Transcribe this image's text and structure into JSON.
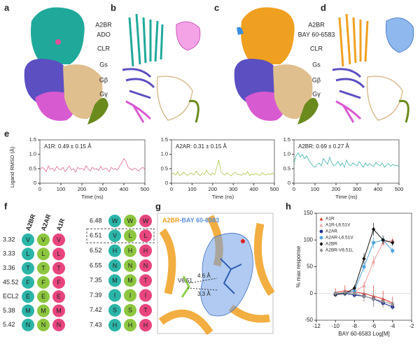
{
  "panel_labels": [
    "a",
    "b",
    "c",
    "d",
    "e",
    "f",
    "g",
    "h"
  ],
  "panel_a": {
    "labels": [
      {
        "text": "A2BR",
        "color": "#1fa99a"
      },
      {
        "text": "ADO",
        "color": "#e0509a"
      },
      {
        "text": "CLR",
        "color": "#3bb0c9"
      },
      {
        "text": "Gs",
        "color": "#5b4fc2"
      },
      {
        "text": "Gβ",
        "color": "#c9a77a"
      },
      {
        "text": "Gγ",
        "color": "#6b8a1e"
      }
    ]
  },
  "panel_c": {
    "labels": [
      {
        "text": "A2BR",
        "color": "#f0a020"
      },
      {
        "text": "BAY 60-6583",
        "color": "#5b8fd6"
      },
      {
        "text": "CLR",
        "color": "#3bb0c9"
      },
      {
        "text": "Gs",
        "color": "#5b4fc2"
      },
      {
        "text": "Gβ",
        "color": "#c9a77a"
      },
      {
        "text": "Gγ",
        "color": "#6b8a1e"
      }
    ]
  },
  "panel_f": {
    "headers": [
      {
        "text": "A2BR",
        "color": "#2bb5a8"
      },
      {
        "text": "A2AR",
        "color": "#8dc63f"
      },
      {
        "text": "A1R",
        "color": "#e8457f"
      }
    ],
    "left_rows": [
      {
        "pos": "3.32",
        "res": [
          "V",
          "V",
          "V"
        ]
      },
      {
        "pos": "3.33",
        "res": [
          "L",
          "L",
          "L"
        ]
      },
      {
        "pos": "3.36",
        "res": [
          "T",
          "T",
          "T"
        ]
      },
      {
        "pos": "45.52",
        "res": [
          "F",
          "F",
          "F"
        ]
      },
      {
        "pos": "ECL2",
        "res": [
          "E",
          "E",
          "E"
        ]
      },
      {
        "pos": "5.38",
        "res": [
          "M",
          "M",
          "M"
        ]
      },
      {
        "pos": "5.42",
        "res": [
          "N",
          "N",
          "N"
        ]
      }
    ],
    "right_rows": [
      {
        "pos": "6.48",
        "res": [
          "W",
          "W",
          "W"
        ]
      },
      {
        "pos": "6.51",
        "res": [
          "V",
          "L",
          "L"
        ],
        "highlight": true
      },
      {
        "pos": "6.52",
        "res": [
          "H",
          "H",
          "H"
        ]
      },
      {
        "pos": "6.55",
        "res": [
          "N",
          "N",
          "N"
        ]
      },
      {
        "pos": "7.35",
        "res": [
          "M",
          "M",
          "T"
        ]
      },
      {
        "pos": "7.39",
        "res": [
          "I",
          "I",
          "I"
        ]
      },
      {
        "pos": "7.42",
        "res": [
          "S",
          "S",
          "T"
        ]
      },
      {
        "pos": "7.43",
        "res": [
          "H",
          "H",
          "H"
        ]
      }
    ]
  },
  "panel_g": {
    "receptor": "A2BR",
    "ligand": "-BAY 60-6583",
    "residue": "V6.51",
    "distances": [
      "4.6 Å",
      "3.3 Å"
    ]
  },
  "chart_data": [
    {
      "type": "line",
      "annotation": "A1R: 0.49 ± 0.15 Å",
      "y_label": "Ligand RMSD (Å)",
      "x_label": "Time (ns)",
      "x": [
        0,
        10,
        20,
        30,
        40,
        50,
        60,
        70,
        80,
        90,
        100,
        110,
        120,
        130,
        140,
        150,
        160,
        170,
        180,
        190,
        200,
        210,
        220,
        230,
        240,
        250,
        260,
        270,
        280,
        290,
        300,
        310,
        320,
        330,
        340,
        350,
        360,
        370,
        380,
        390,
        400,
        410,
        420,
        430,
        440,
        450,
        460,
        470,
        480,
        490,
        500
      ],
      "series": [
        {
          "color": "#d9538a",
          "values": [
            0.45,
            0.55,
            0.5,
            0.4,
            0.6,
            0.48,
            0.52,
            0.42,
            0.58,
            0.5,
            0.46,
            0.55,
            0.4,
            0.5,
            0.6,
            0.45,
            0.5,
            0.38,
            0.55,
            0.48,
            0.52,
            0.45,
            0.6,
            0.5,
            0.42,
            0.55,
            0.48,
            0.5,
            0.44,
            0.58,
            0.46,
            0.52,
            0.5,
            0.4,
            0.55,
            0.48,
            0.5,
            0.45,
            0.6,
            0.7,
            0.85,
            0.75,
            0.55,
            0.5,
            0.45,
            0.52,
            0.48,
            0.42,
            0.5,
            0.55,
            0.47
          ]
        }
      ],
      "xlim": [
        0,
        500
      ],
      "ylim": [
        0,
        1.5
      ],
      "xticks": [
        0,
        100,
        200,
        300,
        400,
        500
      ],
      "yticks": [
        0,
        0.5,
        {
          "value": 1,
          "label": "1.0"
        },
        1.5
      ]
    },
    {
      "type": "line",
      "annotation": "A2AR: 0.31 ± 0.15 Å",
      "x_label": "Time (ns)",
      "x": [
        0,
        10,
        20,
        30,
        40,
        50,
        60,
        70,
        80,
        90,
        100,
        110,
        120,
        130,
        140,
        150,
        160,
        170,
        180,
        190,
        200,
        210,
        220,
        230,
        240,
        250,
        260,
        270,
        280,
        290,
        300,
        310,
        320,
        330,
        340,
        350,
        360,
        370,
        380,
        390,
        400,
        410,
        420,
        430,
        440,
        450,
        460,
        470,
        480,
        490,
        500
      ],
      "series": [
        {
          "color": "#9cbf2e",
          "values": [
            0.3,
            0.35,
            0.28,
            0.4,
            0.25,
            0.32,
            0.38,
            0.3,
            0.27,
            0.35,
            0.33,
            0.29,
            0.42,
            0.31,
            0.26,
            0.36,
            0.3,
            0.45,
            0.33,
            0.28,
            0.35,
            0.3,
            0.55,
            0.8,
            0.4,
            0.32,
            0.28,
            0.36,
            0.3,
            0.25,
            0.33,
            0.38,
            0.29,
            0.31,
            0.27,
            0.35,
            0.3,
            0.4,
            0.26,
            0.32,
            0.29,
            0.34,
            0.3,
            0.27,
            0.36,
            0.31,
            0.28,
            0.33,
            0.3,
            0.35,
            0.29
          ]
        }
      ],
      "xlim": [
        0,
        500
      ],
      "ylim": [
        0,
        1.5
      ],
      "xticks": [
        0,
        100,
        200,
        300,
        400,
        500
      ],
      "yticks": [
        0,
        0.5,
        {
          "value": 1,
          "label": "1.0"
        },
        1.5
      ]
    },
    {
      "type": "line",
      "annotation": "A2BR: 0.69 ± 0.27 Å",
      "x_label": "Time (ns)",
      "x": [
        0,
        10,
        20,
        30,
        40,
        50,
        60,
        70,
        80,
        90,
        100,
        110,
        120,
        130,
        140,
        150,
        160,
        170,
        180,
        190,
        200,
        210,
        220,
        230,
        240,
        250,
        260,
        270,
        280,
        290,
        300,
        310,
        320,
        330,
        340,
        350,
        360,
        370,
        380,
        390,
        400,
        410,
        420,
        430,
        440,
        450,
        460,
        470,
        480,
        490,
        500
      ],
      "series": [
        {
          "color": "#2aa7a0",
          "values": [
            0.7,
            0.95,
            1.05,
            0.9,
            1,
            0.85,
            0.95,
            0.8,
            0.7,
            0.6,
            0.55,
            0.65,
            0.7,
            0.6,
            0.85,
            0.75,
            0.65,
            0.9,
            0.7,
            0.6,
            0.65,
            0.75,
            0.6,
            0.7,
            0.55,
            0.8,
            0.65,
            0.6,
            0.7,
            0.65,
            0.6,
            0.75,
            0.65,
            0.55,
            0.7,
            0.6,
            0.68,
            0.62,
            0.58,
            0.72,
            0.65,
            0.6,
            0.7,
            0.55,
            0.62,
            0.68,
            0.58,
            0.65,
            0.6,
            0.63,
            0.57
          ]
        }
      ],
      "xlim": [
        0,
        500
      ],
      "ylim": [
        0,
        1.5
      ],
      "xticks": [
        0,
        100,
        200,
        300,
        400,
        500
      ],
      "yticks": [
        0,
        0.5,
        {
          "value": 1,
          "label": "1.0"
        },
        1.5
      ]
    },
    {
      "type": "line",
      "x_label": "BAY 60-6583 Log[M]",
      "y_label": "% max response",
      "x": [
        -10,
        -9,
        -8,
        -7,
        -6,
        -5,
        -4
      ],
      "series": [
        {
          "name": "A1R",
          "color": "#e0312b",
          "marker": "triangle",
          "values": [
            2,
            5,
            3,
            0,
            -5,
            -10,
            -18
          ],
          "errors": [
            8,
            10,
            6,
            15,
            20,
            15,
            12
          ]
        },
        {
          "name": "A1R-L6.51V",
          "color": "#f29c9c",
          "marker": "triangle",
          "values": [
            0,
            2,
            3,
            15,
            60,
            95,
            100
          ],
          "errors": [
            4,
            5,
            6,
            8,
            10,
            8,
            6
          ]
        },
        {
          "name": "A2AR",
          "color": "#1c2e8f",
          "marker": "circle",
          "values": [
            -2,
            0,
            -3,
            -5,
            -10,
            -18,
            -25
          ],
          "errors": [
            3,
            4,
            5,
            4,
            6,
            5,
            5
          ]
        },
        {
          "name": "A2AR-L6.51V",
          "color": "#4ea5e0",
          "marker": "circle",
          "values": [
            0,
            0,
            5,
            50,
            95,
            100,
            80
          ],
          "errors": [
            3,
            4,
            8,
            10,
            10,
            8,
            6
          ]
        },
        {
          "name": "A2BR",
          "color": "#111111",
          "marker": "diamond",
          "values": [
            -2,
            0,
            10,
            65,
            120,
            100,
            95
          ],
          "errors": [
            3,
            4,
            6,
            10,
            12,
            8,
            6
          ]
        },
        {
          "name": "A2BR-V6.51L",
          "color": "#8c8c8c",
          "marker": "diamond",
          "values": [
            0,
            2,
            0,
            -5,
            -10,
            -15,
            -20
          ],
          "errors": [
            4,
            5,
            8,
            10,
            15,
            12,
            8
          ]
        }
      ],
      "xlim": [
        -12,
        -2
      ],
      "ylim": [
        -50,
        150
      ],
      "xticks": [
        -12,
        -10,
        -8,
        -6,
        -4,
        -2
      ],
      "yticks": [
        -50,
        0,
        50,
        100,
        150
      ]
    }
  ]
}
